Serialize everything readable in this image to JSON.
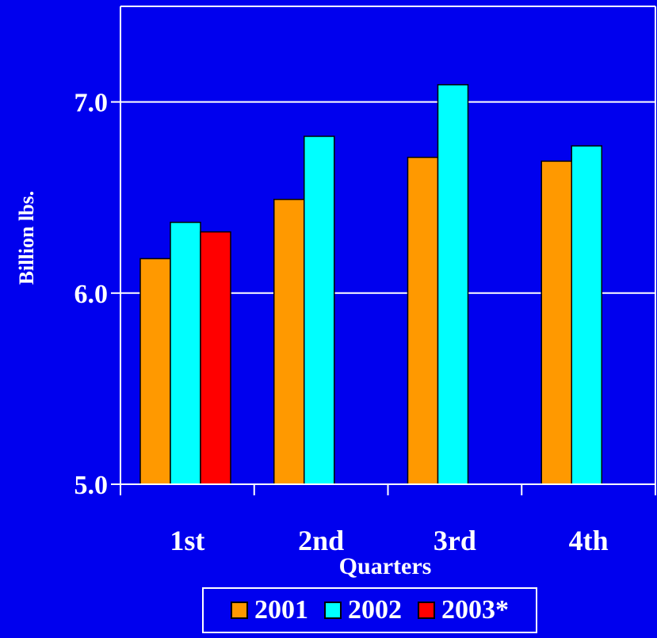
{
  "chart_data": {
    "type": "bar",
    "title": "",
    "xlabel": "Quarters",
    "ylabel": "Billion lbs.",
    "categories": [
      "1st",
      "2nd",
      "3rd",
      "4th"
    ],
    "ylim": [
      5.0,
      7.5
    ],
    "yticks": [
      5.0,
      6.0,
      7.0
    ],
    "ytick_labels": [
      "5.0",
      "6.0",
      "7.0"
    ],
    "grid": true,
    "legend_position": "bottom",
    "series": [
      {
        "name": "2001",
        "color": "#ff9900",
        "values": [
          6.18,
          6.49,
          6.71,
          6.69
        ]
      },
      {
        "name": "2002",
        "color": "#00ffff",
        "values": [
          6.37,
          6.82,
          7.09,
          6.77
        ]
      },
      {
        "name": "2003*",
        "color": "#ff0000",
        "values": [
          6.32,
          null,
          null,
          null
        ]
      }
    ]
  },
  "colors": {
    "background": "#0000ee",
    "axis": "#ffffff",
    "text": "#ffffff"
  }
}
